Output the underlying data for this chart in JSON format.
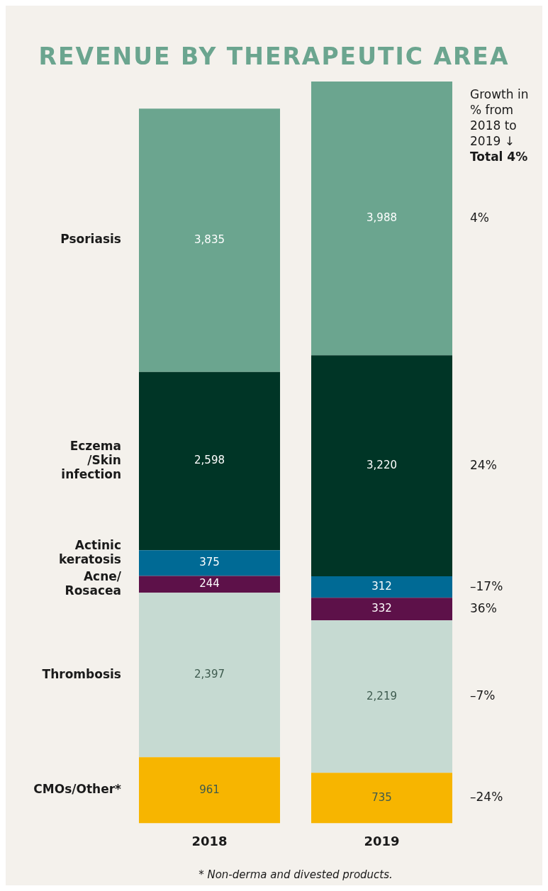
{
  "chart_data": {
    "type": "bar",
    "title": "REVENUE BY THERAPEUTIC AREA",
    "categories": [
      "2018",
      "2019"
    ],
    "stacked": true,
    "tick_labels": "x",
    "legend": false,
    "series": [
      {
        "name": "CMOs/Other*",
        "color": "#f7b500",
        "values": [
          961,
          735
        ],
        "value_labels": [
          "961",
          "735"
        ]
      },
      {
        "name": "Thrombosis",
        "color": "#c6dad2",
        "values": [
          2397,
          2219
        ],
        "value_labels": [
          "2,397",
          "2,219"
        ]
      },
      {
        "name": "Acne/ Rosacea",
        "color": "#5d1149",
        "values": [
          244,
          332
        ],
        "value_labels": [
          "244",
          "332"
        ]
      },
      {
        "name": "Actinic keratosis",
        "color": "#006a95",
        "values": [
          375,
          312
        ],
        "value_labels": [
          "375",
          "312"
        ]
      },
      {
        "name": "Eczema /Skin infection",
        "color": "#003526",
        "values": [
          2598,
          3220
        ],
        "value_labels": [
          "2,598",
          "3,220"
        ]
      },
      {
        "name": "Psoriasis",
        "color": "#6ba58f",
        "values": [
          3835,
          3988
        ],
        "value_labels": [
          "3,835",
          "3,988"
        ]
      }
    ],
    "annotations": [
      "Growth in % from 2018 to 2019 ↓",
      "Total 4%",
      "4%",
      "24%",
      "–17%",
      "36%",
      "–7%",
      "–24%",
      "* Non-derma and divested products."
    ]
  }
}
